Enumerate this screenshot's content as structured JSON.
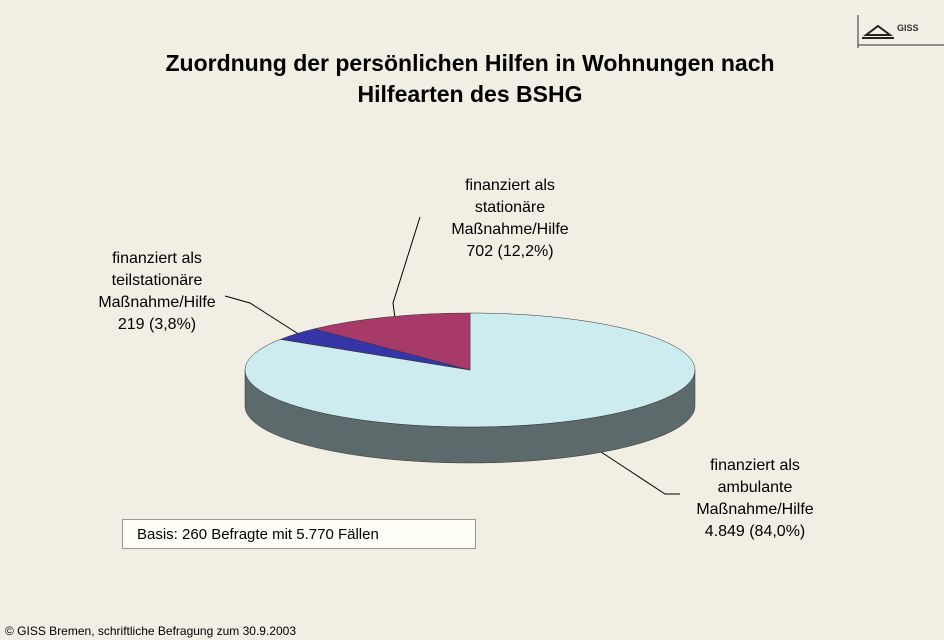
{
  "chart_data": {
    "type": "pie",
    "title": "Zuordnung der persönlichen Hilfen in Wohnungen nach Hilfearten des BSHG",
    "categories": [
      "finanziert als ambulante Maßnahme/Hilfe",
      "finanziert als teilstationäre Maßnahme/Hilfe",
      "finanziert als stationäre Maßnahme/Hilfe"
    ],
    "values": [
      4849,
      219,
      702
    ],
    "value_labels": [
      "4.849 (84,0%)",
      "219 (3,8%)",
      "702 (12,2%)"
    ],
    "colors": [
      "#cdecef",
      "#3535a8",
      "#a83a6a"
    ],
    "note": "Basis: 260 Befragte mit 5.770 Fällen",
    "source": "© GISS Bremen, schriftliche Befragung zum 30.9.2003",
    "logo": "GISS"
  }
}
